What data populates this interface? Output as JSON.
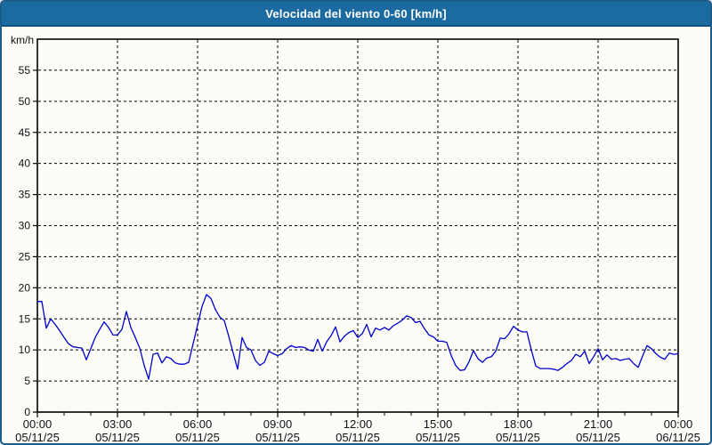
{
  "header": {
    "title": "Velocidad del viento 0-60 [km/h]"
  },
  "colors": {
    "title_bar_bg": "#1b6aa0",
    "title_text": "#ffffff",
    "frame_border": "#1c5c8c",
    "page_bg": "#fbfdf6",
    "axis": "#000000",
    "grid": "#000000",
    "tick_text": "#101018",
    "line": "#0000cc"
  },
  "chart_data": {
    "type": "line",
    "title": "Velocidad del viento 0-60 [km/h]",
    "ylabel": "km/h",
    "unit": "km/h",
    "ylim": [
      0,
      60
    ],
    "grid": "dashed",
    "legend_position": "none",
    "y_ticks": [
      0,
      5,
      10,
      15,
      20,
      25,
      30,
      35,
      40,
      45,
      50,
      55
    ],
    "x_ticks": [
      {
        "time": "00:00",
        "date": "05/11/25"
      },
      {
        "time": "03:00",
        "date": "05/11/25"
      },
      {
        "time": "06:00",
        "date": "05/11/25"
      },
      {
        "time": "09:00",
        "date": "05/11/25"
      },
      {
        "time": "12:00",
        "date": "05/11/25"
      },
      {
        "time": "15:00",
        "date": "05/11/25"
      },
      {
        "time": "18:00",
        "date": "05/11/25"
      },
      {
        "time": "21:00",
        "date": "05/11/25"
      },
      {
        "time": "00:00",
        "date": "06/11/25"
      }
    ],
    "x_start": "05/11/25 00:00",
    "x_end": "06/11/25 00:00",
    "sample_interval_minutes": 10,
    "series": [
      {
        "name": "Velocidad del viento",
        "color": "#0000cc",
        "values": [
          17.8,
          17.8,
          13.5,
          15.0,
          14.1,
          13.1,
          12.0,
          11.0,
          10.5,
          10.4,
          10.3,
          8.4,
          10.2,
          12.0,
          13.3,
          14.5,
          13.6,
          12.4,
          12.4,
          13.3,
          16.2,
          13.6,
          12.0,
          10.3,
          7.5,
          5.3,
          9.3,
          9.5,
          7.9,
          8.9,
          8.6,
          7.9,
          7.7,
          7.7,
          8.0,
          11.0,
          14.0,
          17.0,
          18.9,
          18.3,
          16.5,
          15.3,
          14.7,
          12.2,
          9.5,
          6.9,
          12.0,
          10.4,
          10.0,
          8.3,
          7.5,
          8.0,
          9.8,
          9.4,
          9.1,
          9.4,
          10.2,
          10.7,
          10.4,
          10.5,
          10.4,
          10.0,
          9.8,
          11.7,
          9.8,
          11.3,
          12.3,
          13.7,
          11.3,
          12.2,
          12.8,
          13.1,
          12.0,
          12.6,
          14.1,
          12.1,
          13.5,
          13.2,
          13.6,
          13.2,
          13.9,
          14.3,
          14.8,
          15.5,
          15.2,
          14.4,
          14.6,
          13.4,
          12.4,
          12.1,
          11.4,
          11.4,
          11.2,
          9.1,
          7.5,
          6.7,
          6.8,
          8.1,
          9.9,
          8.6,
          8.0,
          8.7,
          8.9,
          9.8,
          11.9,
          11.8,
          12.6,
          13.8,
          13.2,
          12.9,
          12.9,
          10.0,
          7.4,
          7.0,
          7.0,
          7.0,
          6.9,
          6.7,
          7.2,
          7.8,
          8.3,
          9.3,
          8.9,
          9.8,
          7.8,
          8.9,
          10.2,
          8.4,
          9.2,
          8.5,
          8.6,
          8.3,
          8.5,
          8.6,
          7.8,
          7.2,
          9.0,
          10.7,
          10.2,
          9.4,
          8.8,
          8.5,
          9.5,
          9.3,
          9.4
        ]
      }
    ]
  }
}
